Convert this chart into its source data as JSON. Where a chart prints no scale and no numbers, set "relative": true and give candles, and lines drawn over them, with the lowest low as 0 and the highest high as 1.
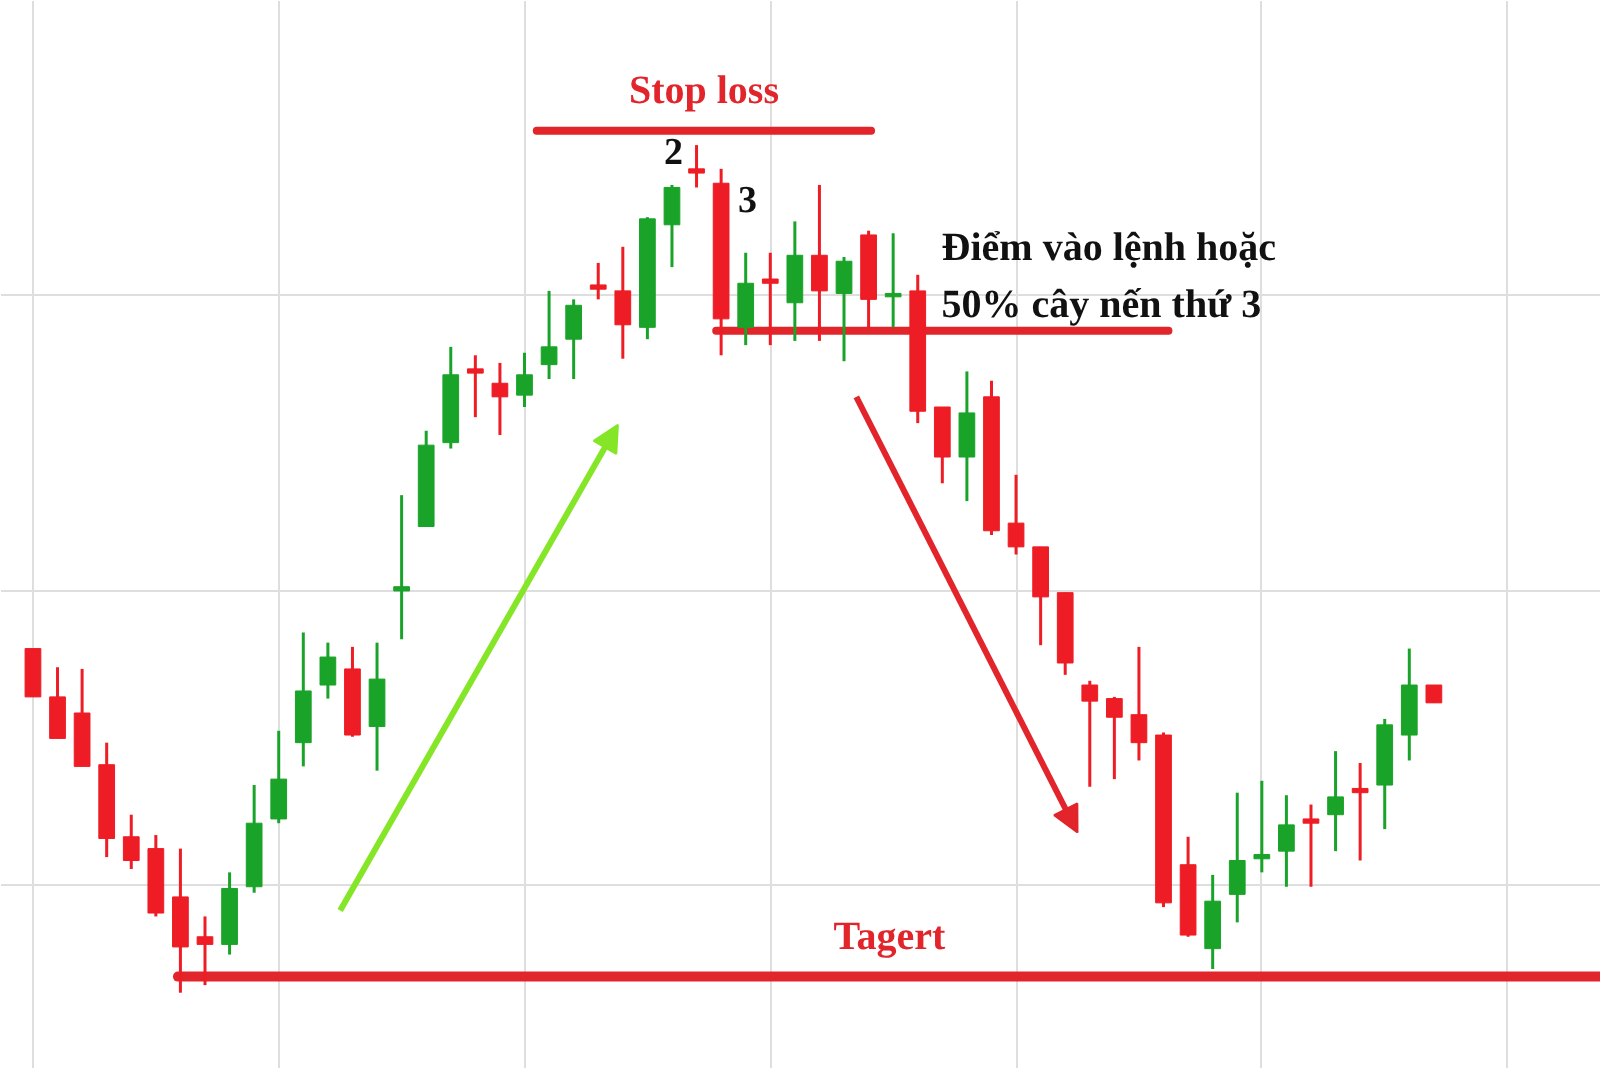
{
  "chart_data": {
    "type": "candlestick",
    "relative": true,
    "grid": true,
    "tick_labels": false,
    "categories": [
      null,
      null,
      null,
      null,
      null,
      null,
      null,
      null,
      null,
      null,
      null,
      null,
      null,
      null,
      null,
      null,
      null,
      null,
      null,
      null,
      null,
      null,
      null,
      null,
      null,
      null,
      null,
      null,
      null,
      null,
      null,
      null,
      null,
      null,
      null,
      null,
      null,
      null,
      null,
      null,
      null,
      null,
      null,
      null,
      null,
      null,
      null,
      null,
      null,
      null,
      null,
      null,
      null,
      null,
      null,
      null,
      null,
      null
    ],
    "ohlc": [
      [
        0.406,
        0.406,
        0.349,
        0.349
      ],
      [
        0.349,
        0.384,
        0.3,
        0.3
      ],
      [
        0.33,
        0.382,
        0.267,
        0.267
      ],
      [
        0.269,
        0.295,
        0.16,
        0.182
      ],
      [
        0.184,
        0.21,
        0.146,
        0.156
      ],
      [
        0.17,
        0.186,
        0.09,
        0.094
      ],
      [
        0.113,
        0.17,
        0,
        0.054
      ],
      [
        0.066,
        0.09,
        0.009,
        0.057
      ],
      [
        0.057,
        0.142,
        0.045,
        0.123
      ],
      [
        0.125,
        0.245,
        0.118,
        0.2
      ],
      [
        0.205,
        0.309,
        0.2,
        0.252
      ],
      [
        0.295,
        0.425,
        0.267,
        0.356
      ],
      [
        0.363,
        0.413,
        0.347,
        0.396
      ],
      [
        0.382,
        0.408,
        0.302,
        0.304
      ],
      [
        0.314,
        0.413,
        0.262,
        0.37
      ],
      [
        0.474,
        0.587,
        0.417,
        0.479
      ],
      [
        0.55,
        0.663,
        0.55,
        0.646
      ],
      [
        0.649,
        0.762,
        0.642,
        0.729
      ],
      [
        0.736,
        0.752,
        0.679,
        0.731
      ],
      [
        0.719,
        0.743,
        0.658,
        0.703
      ],
      [
        0.705,
        0.755,
        0.691,
        0.729
      ],
      [
        0.741,
        0.828,
        0.724,
        0.762
      ],
      [
        0.771,
        0.818,
        0.724,
        0.811
      ],
      [
        0.835,
        0.861,
        0.818,
        0.83
      ],
      [
        0.828,
        0.88,
        0.748,
        0.788
      ],
      [
        0.785,
        0.915,
        0.771,
        0.913
      ],
      [
        0.906,
        0.953,
        0.856,
        0.95
      ],
      [
        0.972,
        1,
        0.95,
        0.967
      ],
      [
        0.955,
        0.972,
        0.752,
        0.795
      ],
      [
        0.785,
        0.873,
        0.764,
        0.837
      ],
      [
        0.842,
        0.873,
        0.764,
        0.837
      ],
      [
        0.814,
        0.91,
        0.769,
        0.87
      ],
      [
        0.87,
        0.953,
        0.769,
        0.828
      ],
      [
        0.825,
        0.868,
        0.745,
        0.863
      ],
      [
        0.894,
        0.899,
        0.785,
        0.818
      ],
      [
        0.821,
        0.896,
        0.785,
        0.825
      ],
      [
        0.828,
        0.847,
        0.672,
        0.686
      ],
      [
        0.691,
        0.691,
        0.601,
        0.632
      ],
      [
        0.632,
        0.733,
        0.58,
        0.684
      ],
      [
        0.703,
        0.722,
        0.54,
        0.545
      ],
      [
        0.554,
        0.611,
        0.517,
        0.526
      ],
      [
        0.526,
        0.526,
        0.41,
        0.467
      ],
      [
        0.472,
        0.472,
        0.375,
        0.389
      ],
      [
        0.363,
        0.368,
        0.243,
        0.344
      ],
      [
        0.347,
        0.349,
        0.252,
        0.325
      ],
      [
        0.328,
        0.408,
        0.274,
        0.295
      ],
      [
        0.304,
        0.307,
        0.101,
        0.106
      ],
      [
        0.151,
        0.184,
        0.066,
        0.068
      ],
      [
        0.052,
        0.139,
        0.028,
        0.108
      ],
      [
        0.116,
        0.236,
        0.083,
        0.156
      ],
      [
        0.158,
        0.25,
        0.142,
        0.163
      ],
      [
        0.167,
        0.233,
        0.125,
        0.198
      ],
      [
        0.205,
        0.222,
        0.125,
        0.2
      ],
      [
        0.21,
        0.285,
        0.167,
        0.231
      ],
      [
        0.241,
        0.271,
        0.156,
        0.236
      ],
      [
        0.245,
        0.323,
        0.193,
        0.316
      ],
      [
        0.304,
        0.406,
        0.274,
        0.363
      ],
      [
        0.363,
        0.363,
        0.342,
        0.342
      ]
    ],
    "colors": [
      "#ee1c24",
      "#ee1c24",
      "#ee1c24",
      "#ee1c24",
      "#ee1c24",
      "#ee1c24",
      "#ee1c24",
      "#ee1c24",
      "#1aa329",
      "#1aa329",
      "#1aa329",
      "#1aa329",
      "#1aa329",
      "#ee1c24",
      "#1aa329",
      "#1aa329",
      "#1aa329",
      "#1aa329",
      "#ee1c24",
      "#ee1c24",
      "#1aa329",
      "#1aa329",
      "#1aa329",
      "#ee1c24",
      "#ee1c24",
      "#1aa329",
      "#1aa329",
      "#ee1c24",
      "#ee1c24",
      "#1aa329",
      "#ee1c24",
      "#1aa329",
      "#ee1c24",
      "#1aa329",
      "#ee1c24",
      "#1aa329",
      "#ee1c24",
      "#ee1c24",
      "#1aa329",
      "#ee1c24",
      "#ee1c24",
      "#ee1c24",
      "#ee1c24",
      "#ee1c24",
      "#ee1c24",
      "#ee1c24",
      "#ee1c24",
      "#ee1c24",
      "#1aa329",
      "#1aa329",
      "#1aa329",
      "#1aa329",
      "#ee1c24",
      "#1aa329",
      "#ee1c24",
      "#1aa329",
      "#1aa329",
      "#ee1c24"
    ],
    "ref_lines": [
      {
        "axis": "y",
        "value": 1.017,
        "label": "Stop loss",
        "color": "#e2242b"
      },
      {
        "axis": "y",
        "value": 0.781,
        "color": "#e2242b"
      },
      {
        "axis": "y",
        "value": 0.019,
        "label": "Tagert",
        "color": "#e2242b"
      }
    ],
    "annotations": [
      "2",
      "3",
      "Điểm vào lệnh hoặc\n50% cây nến thứ 3"
    ]
  }
}
